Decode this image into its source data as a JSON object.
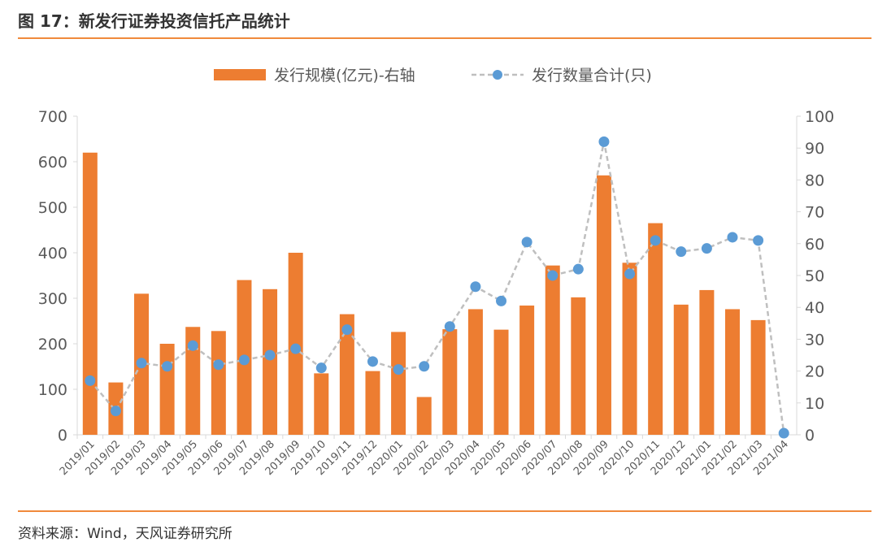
{
  "figure": {
    "title": "图 17：新发行证券投资信托产品统计",
    "source": "资料来源：Wind，天风证券研究所"
  },
  "colors": {
    "bar": "#ED7D31",
    "line": "#BFBFBF",
    "marker": "#5B9BD5",
    "accent_rule": "#F08A3C",
    "axis": "#D9D9D9"
  },
  "chart_data": {
    "type": "bar",
    "title": "",
    "categories": [
      "2019/01",
      "2019/02",
      "2019/03",
      "2019/04",
      "2019/05",
      "2019/06",
      "2019/07",
      "2019/08",
      "2019/09",
      "2019/10",
      "2019/11",
      "2019/12",
      "2020/01",
      "2020/02",
      "2020/03",
      "2020/04",
      "2020/05",
      "2020/06",
      "2020/07",
      "2020/08",
      "2020/09",
      "2020/10",
      "2020/11",
      "2020/12",
      "2021/01",
      "2021/02",
      "2021/03",
      "2021/04"
    ],
    "series": [
      {
        "name": "发行规模(亿元)-右轴",
        "type": "bar",
        "axis": "left",
        "values": [
          620,
          115,
          310,
          200,
          237,
          228,
          340,
          320,
          400,
          135,
          265,
          140,
          226,
          83,
          232,
          276,
          231,
          284,
          372,
          302,
          570,
          378,
          465,
          286,
          318,
          276,
          252,
          0
        ]
      },
      {
        "name": "发行数量合计(只)",
        "type": "line",
        "style": "dashed",
        "axis": "right",
        "values": [
          17,
          7.5,
          22.5,
          21.5,
          28,
          22,
          23.5,
          25,
          27,
          21,
          33,
          23,
          20.5,
          21.5,
          34,
          46.5,
          42,
          60.5,
          50,
          52,
          92,
          50.5,
          61,
          57.5,
          58.5,
          62,
          61,
          0.5
        ]
      }
    ],
    "y_left": {
      "min": 0,
      "max": 700,
      "step": 100,
      "ticks": [
        "0",
        "100",
        "200",
        "300",
        "400",
        "500",
        "600",
        "700"
      ]
    },
    "y_right": {
      "min": 0,
      "max": 100,
      "step": 10,
      "ticks": [
        "0",
        "10",
        "20",
        "30",
        "40",
        "50",
        "60",
        "70",
        "80",
        "90",
        "100"
      ]
    },
    "legend_position": "top-center",
    "grid": false
  }
}
